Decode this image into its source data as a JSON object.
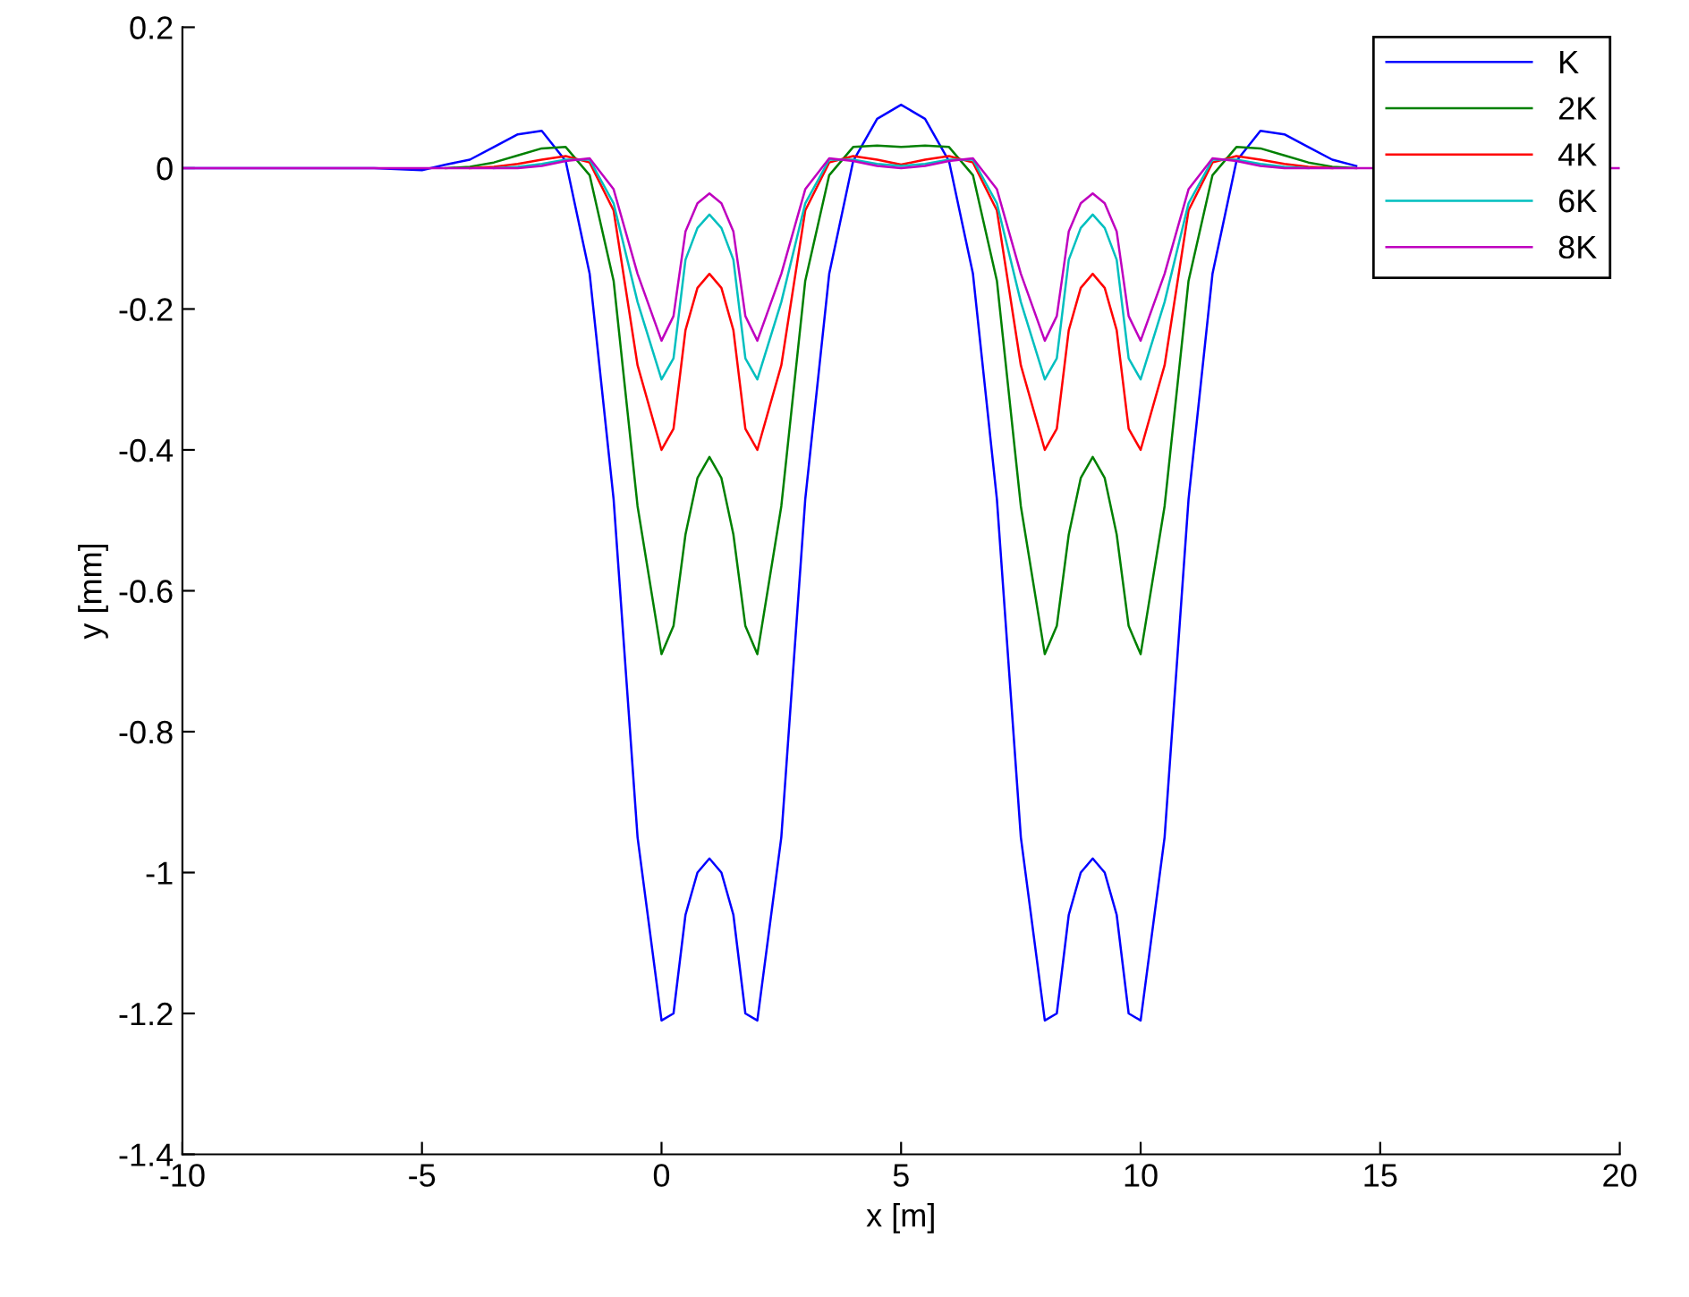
{
  "chart_data": {
    "type": "line",
    "xlabel": "x [m]",
    "ylabel": "y [mm]",
    "x": [
      -10,
      -6,
      -5,
      -4.5,
      -4,
      -3.5,
      -3,
      -2.5,
      -2,
      -1.5,
      -1,
      -0.5,
      0,
      0.25,
      0.5,
      0.75,
      1,
      1.25,
      1.5,
      1.75,
      2,
      2.5,
      3,
      3.5,
      4,
      4.5,
      5,
      5.5,
      6,
      6.5,
      7,
      7.5,
      8,
      8.25,
      8.5,
      8.75,
      9,
      9.25,
      9.5,
      9.75,
      10,
      10.5,
      11,
      11.5,
      12,
      12.5,
      13,
      13.5,
      14,
      14.5,
      20
    ],
    "series": [
      {
        "name": "K",
        "color": "#0000ff",
        "values": [
          0,
          0,
          -0.003,
          0.005,
          0.012,
          0.03,
          0.048,
          0.053,
          0.01,
          -0.15,
          -0.47,
          -0.95,
          -1.21,
          -1.2,
          -1.06,
          -1.0,
          -0.98,
          -1.0,
          -1.06,
          -1.2,
          -1.21,
          -0.95,
          -0.47,
          -0.15,
          0.01,
          0.07,
          0.09,
          0.07,
          0.01,
          -0.15,
          -0.47,
          -0.95,
          -1.21,
          -1.2,
          -1.06,
          -1.0,
          -0.98,
          -1.0,
          -1.06,
          -1.2,
          -1.21,
          -0.95,
          -0.47,
          -0.15,
          0.01,
          0.053,
          0.048,
          0.03,
          0.012,
          0.003,
          null
        ]
      },
      {
        "name": "2K",
        "color": "#008000",
        "values": [
          null,
          null,
          null,
          0,
          0.002,
          0.008,
          0.018,
          0.028,
          0.03,
          -0.01,
          -0.16,
          -0.48,
          -0.69,
          -0.65,
          -0.52,
          -0.44,
          -0.41,
          -0.44,
          -0.52,
          -0.65,
          -0.69,
          -0.48,
          -0.16,
          -0.01,
          0.03,
          0.032,
          0.03,
          0.032,
          0.03,
          -0.01,
          -0.16,
          -0.48,
          -0.69,
          -0.65,
          -0.52,
          -0.44,
          -0.41,
          -0.44,
          -0.52,
          -0.65,
          -0.69,
          -0.48,
          -0.16,
          -0.01,
          0.03,
          0.028,
          0.018,
          0.008,
          0.002,
          0,
          null
        ]
      },
      {
        "name": "4K",
        "color": "#ff0000",
        "values": [
          null,
          null,
          null,
          null,
          0,
          0.002,
          0.006,
          0.012,
          0.017,
          0.008,
          -0.06,
          -0.28,
          -0.4,
          -0.37,
          -0.23,
          -0.17,
          -0.15,
          -0.17,
          -0.23,
          -0.37,
          -0.4,
          -0.28,
          -0.06,
          0.008,
          0.017,
          0.012,
          0.005,
          0.012,
          0.017,
          0.008,
          -0.06,
          -0.28,
          -0.4,
          -0.37,
          -0.23,
          -0.17,
          -0.15,
          -0.17,
          -0.23,
          -0.37,
          -0.4,
          -0.28,
          -0.06,
          0.008,
          0.017,
          0.012,
          0.006,
          0.002,
          0,
          null,
          null
        ]
      },
      {
        "name": "6K",
        "color": "#00bfbf",
        "values": [
          null,
          null,
          null,
          null,
          null,
          0,
          0.002,
          0.006,
          0.012,
          0.012,
          -0.05,
          -0.19,
          -0.3,
          -0.27,
          -0.13,
          -0.085,
          -0.066,
          -0.085,
          -0.13,
          -0.27,
          -0.3,
          -0.19,
          -0.05,
          0.012,
          0.012,
          0.006,
          0.003,
          0.006,
          0.012,
          0.012,
          -0.05,
          -0.19,
          -0.3,
          -0.27,
          -0.13,
          -0.085,
          -0.066,
          -0.085,
          -0.13,
          -0.27,
          -0.3,
          -0.19,
          -0.05,
          0.012,
          0.012,
          0.006,
          0.002,
          0,
          null,
          null,
          null
        ]
      },
      {
        "name": "8K",
        "color": "#bf00bf",
        "values": [
          0,
          0,
          0,
          0,
          0,
          0,
          0,
          0.003,
          0.01,
          0.014,
          -0.03,
          -0.15,
          -0.245,
          -0.21,
          -0.09,
          -0.05,
          -0.036,
          -0.05,
          -0.09,
          -0.21,
          -0.245,
          -0.15,
          -0.03,
          0.014,
          0.01,
          0.003,
          0,
          0.003,
          0.01,
          0.014,
          -0.03,
          -0.15,
          -0.245,
          -0.21,
          -0.09,
          -0.05,
          -0.036,
          -0.05,
          -0.09,
          -0.21,
          -0.245,
          -0.15,
          -0.03,
          0.014,
          0.01,
          0.003,
          0,
          0,
          0,
          0,
          0
        ]
      }
    ],
    "xlim": [
      -10,
      20
    ],
    "xticks": [
      -10,
      -5,
      0,
      5,
      10,
      15,
      20
    ],
    "ylim": [
      -1.4,
      0.2
    ],
    "yticks": [
      {
        "value": -1.4,
        "label": "-1.4"
      },
      {
        "value": -1.2,
        "label": "-1.2"
      },
      {
        "value": -1,
        "label": "-1"
      },
      {
        "value": -0.8,
        "label": "-0.8"
      },
      {
        "value": -0.6,
        "label": "-0.6"
      },
      {
        "value": -0.4,
        "label": "-0.4"
      },
      {
        "value": -0.2,
        "label": "-0.2"
      },
      {
        "value": 0,
        "label": "0"
      },
      {
        "value": 0.2,
        "label": "0.2"
      }
    ],
    "grid": false,
    "legend": "top right",
    "line_style": "solid",
    "marker": "none"
  }
}
